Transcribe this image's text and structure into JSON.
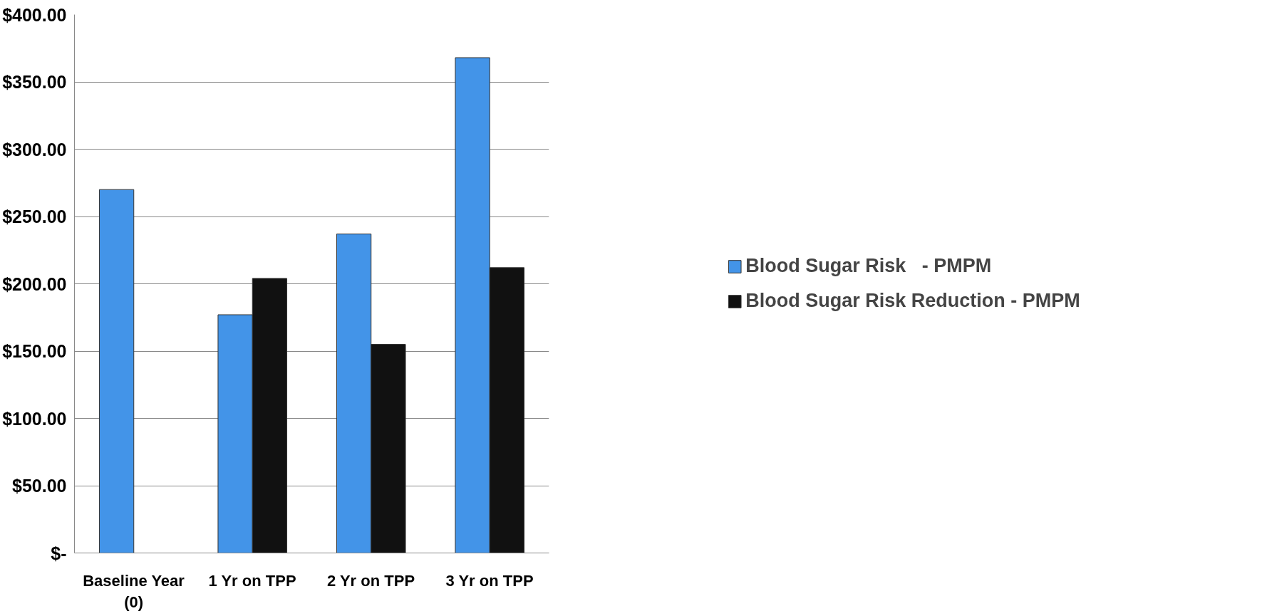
{
  "chart_data": {
    "type": "bar",
    "categories": [
      "Baseline Year\n(0)",
      "1 Yr on TPP",
      "2 Yr on TPP",
      "3 Yr on TPP"
    ],
    "series": [
      {
        "name": "Blood Sugar Risk   - PMPM",
        "color": "#4394e8",
        "values": [
          270,
          177,
          237,
          368
        ]
      },
      {
        "name": "Blood Sugar Risk Reduction - PMPM",
        "color": "#111111",
        "values": [
          null,
          204,
          155,
          212
        ]
      }
    ],
    "ylim": [
      0,
      400
    ],
    "yticks": [
      {
        "value": 0,
        "label": "$-"
      },
      {
        "value": 50,
        "label": "$50.00"
      },
      {
        "value": 100,
        "label": "$100.00"
      },
      {
        "value": 150,
        "label": "$150.00"
      },
      {
        "value": 200,
        "label": "$200.00"
      },
      {
        "value": 250,
        "label": "$250.00"
      },
      {
        "value": 300,
        "label": "$300.00"
      },
      {
        "value": 350,
        "label": "$350.00"
      },
      {
        "value": 400,
        "label": "$400.00"
      }
    ],
    "grid": "y",
    "legend": "right"
  }
}
